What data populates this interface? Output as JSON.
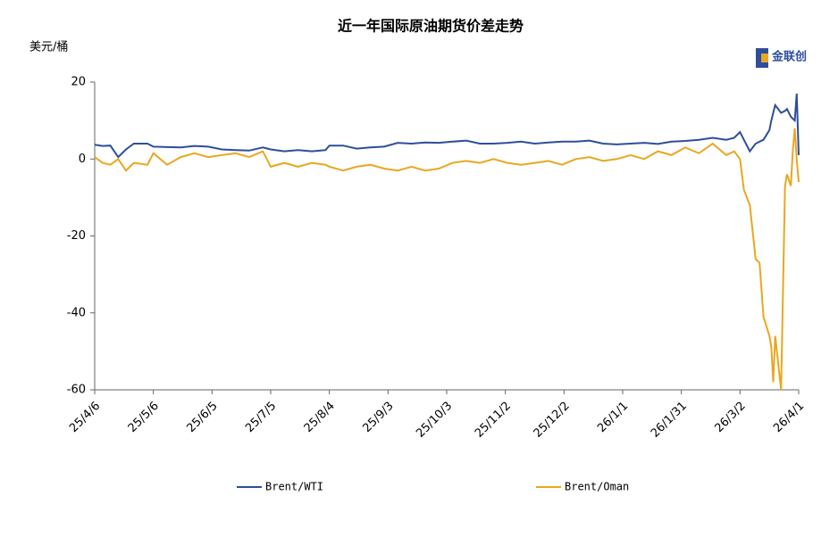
{
  "chart_data": {
    "type": "line",
    "title": "近一年国际原油期货价差走势",
    "y_label": "美元/桶",
    "logo": "金联创",
    "x": [
      "25/4/6",
      "25/4/10",
      "25/4/14",
      "25/4/18",
      "25/4/22",
      "25/4/26",
      "25/5/3",
      "25/5/6",
      "25/5/13",
      "25/5/20",
      "25/5/27",
      "25/6/3",
      "25/6/10",
      "25/6/17",
      "25/6/24",
      "25/7/1",
      "25/7/5",
      "25/7/12",
      "25/7/19",
      "25/7/26",
      "25/8/2",
      "25/8/4",
      "25/8/11",
      "25/8/18",
      "25/8/25",
      "25/9/1",
      "25/9/8",
      "25/9/15",
      "25/9/22",
      "25/9/29",
      "25/10/6",
      "25/10/13",
      "25/10/20",
      "25/10/27",
      "25/11/3",
      "25/11/10",
      "25/11/17",
      "25/11/24",
      "25/12/1",
      "25/12/8",
      "25/12/15",
      "25/12/22",
      "25/12/29",
      "26/1/5",
      "26/1/12",
      "26/1/19",
      "26/1/26",
      "26/2/2",
      "26/2/9",
      "26/2/16",
      "26/2/23",
      "26/2/27",
      "26/3/2",
      "26/3/4",
      "26/3/7",
      "26/3/10",
      "26/3/12",
      "26/3/14",
      "26/3/17",
      "26/3/18",
      "26/3/19",
      "26/3/20",
      "26/3/23",
      "26/3/25",
      "26/3/26",
      "26/3/28",
      "26/3/29",
      "26/3/30",
      "26/3/31",
      "26/4/1"
    ],
    "series": [
      {
        "name": "Brent/WTI",
        "color": "#2e4e9c",
        "values": [
          3.7,
          3.4,
          3.5,
          0.5,
          2.5,
          4,
          4,
          3.2,
          3.1,
          3.0,
          3.4,
          3.2,
          2.5,
          2.3,
          2.2,
          3,
          2.5,
          2,
          2.3,
          2,
          2.3,
          3.5,
          3.5,
          2.7,
          3,
          3.2,
          4.2,
          4,
          4.3,
          4.2,
          4.5,
          4.8,
          4,
          4,
          4.2,
          4.5,
          4,
          4.3,
          4.5,
          4.5,
          4.8,
          4,
          3.8,
          4,
          4.2,
          3.9,
          4.5,
          4.7,
          5,
          5.5,
          5,
          5.5,
          7,
          5,
          2,
          4,
          4.5,
          5,
          7.5,
          10,
          12,
          14,
          12,
          12.5,
          13,
          11,
          10.5,
          10,
          17,
          1
        ]
      },
      {
        "name": "Brent/Oman",
        "color": "#e8a820",
        "values": [
          0.5,
          -1,
          -1.5,
          0,
          -3,
          -1,
          -1.5,
          1.5,
          -1.5,
          0.5,
          1.5,
          0.5,
          1,
          1.5,
          0.5,
          2,
          -2,
          -1,
          -2,
          -1,
          -1.5,
          -2,
          -3,
          -2,
          -1.5,
          -2.5,
          -3,
          -2,
          -3,
          -2.5,
          -1,
          -0.5,
          -1,
          0,
          -1,
          -1.5,
          -1,
          -0.5,
          -1.5,
          0,
          0.5,
          -0.5,
          0,
          1,
          0,
          2,
          1,
          3,
          1.5,
          4,
          1,
          2,
          0,
          -8,
          -12,
          -26,
          -27,
          -41,
          -46,
          -49,
          -58,
          -46,
          -60,
          -7,
          -4,
          -7,
          2,
          8,
          0,
          -6
        ]
      }
    ],
    "xlim": [
      "25/4/6",
      "26/4/1"
    ],
    "xticks": [
      "25/4/6",
      "25/5/6",
      "25/6/5",
      "25/7/5",
      "25/8/4",
      "25/9/3",
      "25/10/3",
      "25/11/2",
      "25/12/2",
      "26/1/1",
      "26/1/31",
      "26/3/2",
      "26/4/1"
    ],
    "ylim": [
      -60,
      20
    ],
    "yticks": [
      -60,
      -40,
      -20,
      0,
      20
    ]
  }
}
